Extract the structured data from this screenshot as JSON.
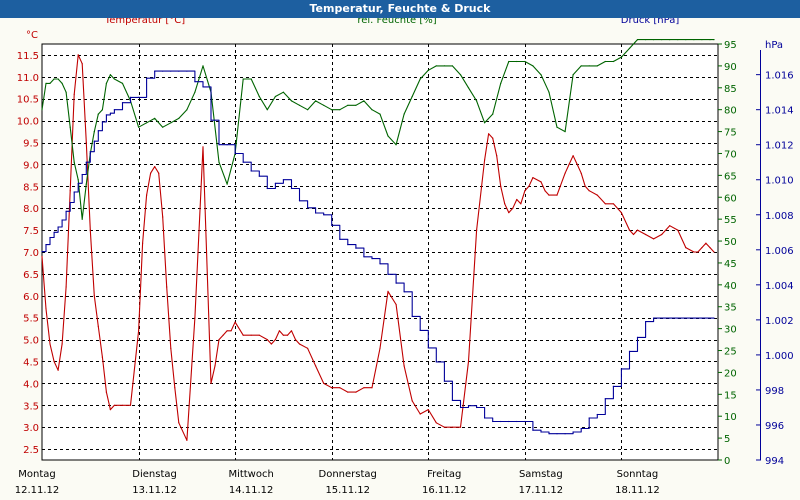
{
  "window": {
    "title": "Temperatur, Feuchte & Druck"
  },
  "chart_data": {
    "type": "line",
    "title": "Temperatur, Feuchte & Druck",
    "colors": {
      "temperature": "#c00000",
      "humidity": "#006400",
      "pressure": "#000099",
      "grid": "#000000"
    },
    "grid": true,
    "x_range_hours": [
      0,
      168
    ],
    "x_ticks": [
      {
        "day": "Montag",
        "date": "12.11.12"
      },
      {
        "day": "Dienstag",
        "date": "13.11.12"
      },
      {
        "day": "Mittwoch",
        "date": "14.11.12"
      },
      {
        "day": "Donnerstag",
        "date": "15.11.12"
      },
      {
        "day": "Freitag",
        "date": "16.11.12"
      },
      {
        "day": "Samstag",
        "date": "17.11.12"
      },
      {
        "day": "Sonntag",
        "date": "18.11.12"
      }
    ],
    "axes": {
      "temperature": {
        "label": "Temperatur [°C]",
        "unit": "°C",
        "range": [
          2.25,
          11.75
        ],
        "ticks": [
          "11.5",
          "11.0",
          "10.5",
          "10.0",
          "9.5",
          "9.0",
          "8.5",
          "8.0",
          "7.5",
          "7.0",
          "6.5",
          "6.0",
          "5.5",
          "5.0",
          "4.5",
          "4.0",
          "3.5",
          "3.0",
          "2.5"
        ]
      },
      "humidity": {
        "label": "rel. Feuchte [%]",
        "unit": "%",
        "range": [
          0,
          95
        ],
        "ticks": [
          "95",
          "90",
          "85",
          "80",
          "75",
          "70",
          "65",
          "60",
          "55",
          "50",
          "45",
          "40",
          "35",
          "30",
          "25",
          "20",
          "15",
          "10",
          "5",
          "0"
        ]
      },
      "pressure": {
        "label": "Druck [hPa]",
        "unit": "hPa",
        "range": [
          994,
          1017.75
        ],
        "ticks": [
          "1.016",
          "1.014",
          "1.012",
          "1.010",
          "1.008",
          "1.006",
          "1.004",
          "1.002",
          "1.000",
          "998",
          "996",
          "994"
        ]
      }
    },
    "series": [
      {
        "name": "Temperatur [°C]",
        "axis": "temperature",
        "color": "#c00000",
        "x": [
          0,
          1,
          2,
          3,
          4,
          5,
          6,
          7,
          8,
          9,
          10,
          11,
          12,
          13,
          14,
          15,
          16,
          17,
          18,
          20,
          22,
          24,
          25,
          26,
          27,
          28,
          29,
          30,
          31,
          32,
          33,
          34,
          36,
          38,
          40,
          42,
          43,
          44,
          45,
          46,
          47,
          48,
          50,
          52,
          54,
          56,
          57,
          58,
          59,
          60,
          61,
          62,
          63,
          64,
          66,
          68,
          70,
          72,
          74,
          76,
          78,
          80,
          82,
          84,
          86,
          88,
          90,
          92,
          94,
          96,
          98,
          100,
          102,
          104,
          106,
          108,
          110,
          111,
          112,
          113,
          114,
          115,
          116,
          117,
          118,
          119,
          120,
          121,
          122,
          124,
          125,
          126,
          128,
          130,
          131,
          132,
          133,
          134,
          135,
          136,
          138,
          140,
          142,
          144,
          146,
          147,
          148,
          150,
          152,
          154,
          156,
          158,
          160,
          162,
          163,
          164,
          165,
          166,
          167
        ],
        "values": [
          6.9,
          5.7,
          4.9,
          4.5,
          4.3,
          4.9,
          6.2,
          8.4,
          10.6,
          11.5,
          11.3,
          9.5,
          7.5,
          6.0,
          5.3,
          4.6,
          3.8,
          3.4,
          3.5,
          3.5,
          3.5,
          5.2,
          7.2,
          8.3,
          8.8,
          8.95,
          8.8,
          7.8,
          6.2,
          4.8,
          3.9,
          3.1,
          2.7,
          5.5,
          9.4,
          4.0,
          4.4,
          5.0,
          5.1,
          5.2,
          5.2,
          5.4,
          5.1,
          5.1,
          5.1,
          5.0,
          4.9,
          5.0,
          5.2,
          5.1,
          5.1,
          5.2,
          5.0,
          4.9,
          4.8,
          4.4,
          4.0,
          3.9,
          3.9,
          3.8,
          3.8,
          3.9,
          3.9,
          4.8,
          6.1,
          5.8,
          4.4,
          3.6,
          3.3,
          3.4,
          3.1,
          3.0,
          3.0,
          3.0,
          4.5,
          7.5,
          9.1,
          9.7,
          9.6,
          9.2,
          8.5,
          8.1,
          7.9,
          8.0,
          8.2,
          8.1,
          8.4,
          8.5,
          8.7,
          8.6,
          8.4,
          8.3,
          8.3,
          8.8,
          9.0,
          9.2,
          9.0,
          8.8,
          8.5,
          8.4,
          8.3,
          8.1,
          8.1,
          7.9,
          7.5,
          7.4,
          7.5,
          7.4,
          7.3,
          7.4,
          7.6,
          7.5,
          7.1,
          7.0,
          7.0,
          7.1,
          7.2,
          7.1,
          7.0
        ]
      },
      {
        "name": "rel. Feuchte [%]",
        "axis": "humidity",
        "color": "#006400",
        "x": [
          0,
          1,
          2,
          3,
          4,
          5,
          6,
          7,
          8,
          9,
          10,
          11,
          12,
          13,
          14,
          15,
          16,
          17,
          18,
          20,
          22,
          24,
          26,
          28,
          30,
          32,
          34,
          36,
          38,
          40,
          42,
          44,
          46,
          48,
          50,
          52,
          54,
          56,
          58,
          60,
          62,
          64,
          66,
          68,
          70,
          72,
          74,
          76,
          78,
          80,
          82,
          84,
          86,
          88,
          90,
          92,
          94,
          96,
          98,
          100,
          102,
          104,
          106,
          108,
          110,
          112,
          114,
          116,
          118,
          120,
          122,
          124,
          126,
          128,
          130,
          132,
          134,
          136,
          138,
          140,
          142,
          144,
          146,
          148,
          150,
          152,
          154,
          156,
          158,
          160,
          162,
          164,
          166,
          167
        ],
        "values": [
          80,
          86,
          86,
          87,
          87,
          86,
          84,
          76,
          68,
          64,
          55,
          63,
          70,
          75,
          79,
          80,
          86,
          88,
          87,
          86,
          82,
          76,
          77,
          78,
          76,
          77,
          78,
          80,
          84,
          90,
          84,
          68,
          63,
          70,
          87,
          87,
          83,
          80,
          83,
          84,
          82,
          81,
          80,
          82,
          81,
          80,
          80,
          81,
          81,
          82,
          80,
          79,
          74,
          72,
          79,
          83,
          87,
          89,
          90,
          90,
          90,
          88,
          85,
          82,
          77,
          79,
          86,
          91,
          91,
          91,
          90,
          88,
          84,
          76,
          75,
          88,
          90,
          90,
          90,
          91,
          91,
          92,
          94,
          96,
          96,
          96,
          96,
          96,
          96,
          96,
          96,
          96,
          96,
          96
        ]
      },
      {
        "name": "Druck [hPa]",
        "axis": "pressure",
        "color": "#000099",
        "x": [
          0,
          1,
          2,
          3,
          4,
          5,
          6,
          7,
          8,
          9,
          10,
          11,
          12,
          13,
          14,
          15,
          16,
          17,
          18,
          20,
          22,
          24,
          26,
          28,
          30,
          32,
          34,
          36,
          38,
          40,
          42,
          44,
          46,
          48,
          50,
          52,
          54,
          56,
          58,
          60,
          62,
          64,
          66,
          68,
          70,
          72,
          74,
          76,
          78,
          80,
          82,
          84,
          86,
          88,
          90,
          92,
          94,
          96,
          98,
          100,
          102,
          104,
          106,
          108,
          110,
          112,
          114,
          116,
          118,
          120,
          122,
          124,
          126,
          128,
          130,
          132,
          134,
          136,
          138,
          140,
          142,
          144,
          146,
          148,
          150,
          152,
          154,
          156,
          158,
          160,
          162,
          164,
          166,
          167
        ],
        "values": [
          1005.9,
          1006.3,
          1006.7,
          1007.0,
          1007.3,
          1007.7,
          1008.2,
          1008.7,
          1009.3,
          1009.8,
          1010.3,
          1011.0,
          1011.6,
          1012.2,
          1012.8,
          1013.3,
          1013.7,
          1013.8,
          1014.0,
          1014.4,
          1014.7,
          1014.7,
          1015.8,
          1016.2,
          1016.2,
          1016.2,
          1016.2,
          1016.2,
          1015.6,
          1015.3,
          1013.4,
          1012.0,
          1012.0,
          1011.5,
          1011.0,
          1010.5,
          1010.2,
          1009.5,
          1009.8,
          1010.0,
          1009.5,
          1008.8,
          1008.4,
          1008.1,
          1008.0,
          1007.4,
          1006.6,
          1006.3,
          1006.1,
          1005.6,
          1005.5,
          1005.2,
          1004.6,
          1004.1,
          1003.6,
          1002.2,
          1001.4,
          1000.4,
          999.6,
          998.5,
          997.4,
          997.0,
          997.1,
          997.0,
          996.4,
          996.2,
          996.2,
          996.2,
          996.2,
          996.2,
          995.7,
          995.6,
          995.5,
          995.5,
          995.5,
          995.6,
          995.8,
          996.4,
          996.6,
          997.5,
          998.2,
          999.2,
          1000.2,
          1001.0,
          1001.9,
          1002.1,
          1002.1,
          1002.1,
          1002.1,
          1002.1,
          1002.1,
          1002.1,
          1002.1,
          1002.1
        ]
      }
    ]
  }
}
